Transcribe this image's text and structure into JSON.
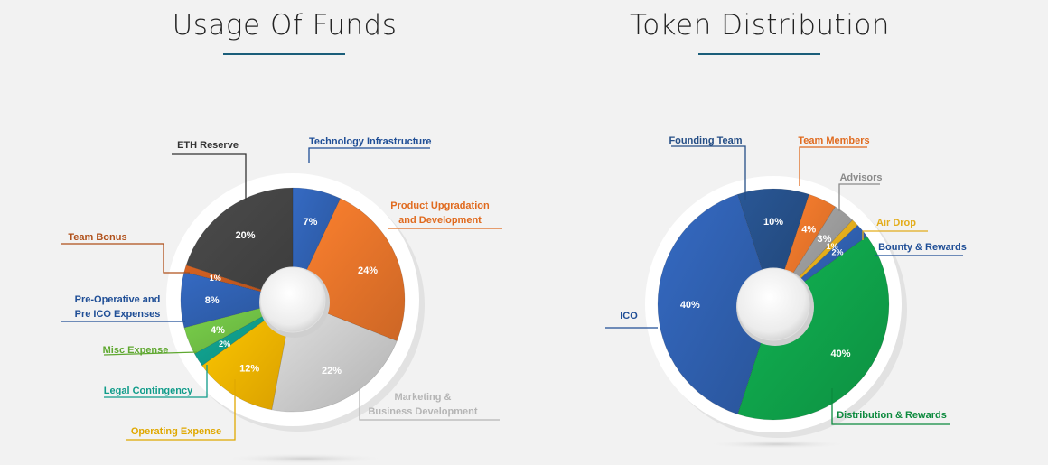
{
  "charts": {
    "usage": {
      "title": "Usage Of Funds"
    },
    "token": {
      "title": "Token Distribution"
    }
  },
  "chart_data": [
    {
      "type": "pie",
      "title": "Usage Of Funds",
      "slices": [
        {
          "label": "Technology Infrastructure",
          "value": 7,
          "pct_text": "7%",
          "color": "#2f5fae"
        },
        {
          "label": "Product Upgradation and Development",
          "value": 24,
          "pct_text": "24%",
          "color": "#e8742a"
        },
        {
          "label": "Marketing & Business Development",
          "value": 22,
          "pct_text": "22%",
          "color": "#c9c9c9"
        },
        {
          "label": "Operating Expense",
          "value": 12,
          "pct_text": "12%",
          "color": "#f6b400"
        },
        {
          "label": "Legal Contingency",
          "value": 2,
          "pct_text": "2%",
          "color": "#109c8a"
        },
        {
          "label": "Misc  Expense",
          "value": 4,
          "pct_text": "4%",
          "color": "#6fbe44"
        },
        {
          "label": "Pre-Operative and Pre ICO Expenses",
          "value": 8,
          "pct_text": "8%",
          "color": "#2f5fae"
        },
        {
          "label": "Team Bonus",
          "value": 1,
          "pct_text": "1%",
          "color": "#c0581f"
        },
        {
          "label": "ETH Reserve",
          "value": 20,
          "pct_text": "20%",
          "color": "#444444"
        }
      ]
    },
    {
      "type": "pie",
      "title": "Token Distribution",
      "slices": [
        {
          "label": "Founding Team",
          "value": 10,
          "pct_text": "10%",
          "color": "#254e86"
        },
        {
          "label": "Team Members",
          "value": 4,
          "pct_text": "4%",
          "color": "#e8742a"
        },
        {
          "label": "Advisors",
          "value": 3,
          "pct_text": "3%",
          "color": "#9a9a9a"
        },
        {
          "label": "Air Drop",
          "value": 1,
          "pct_text": "1%",
          "color": "#e3ad1c"
        },
        {
          "label": "Bounty & Rewards",
          "value": 2,
          "pct_text": "2%",
          "color": "#2f5fae"
        },
        {
          "label": "Distribution & Rewards",
          "value": 40,
          "pct_text": "40%",
          "color": "#0fa24a"
        },
        {
          "label": "ICO",
          "value": 40,
          "pct_text": "40%",
          "color": "#2f5fae"
        }
      ]
    }
  ]
}
